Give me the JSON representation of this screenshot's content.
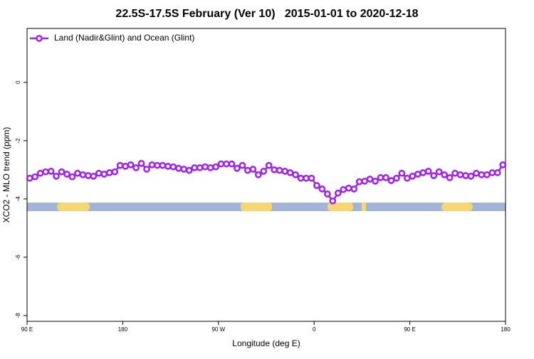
{
  "chart_data": {
    "type": "line",
    "title": "22.5S-17.5S February (Ver 10)   2015-01-01 to 2020-12-18",
    "x_label": "Longitude (deg E)",
    "y_label": "XCO2 - MLO trend (ppm)",
    "xlim": [
      90,
      540
    ],
    "ylim": [
      -8.2,
      1.85
    ],
    "xticks": [
      {
        "value": 90,
        "label": "90 E"
      },
      {
        "value": 180,
        "label": "180"
      },
      {
        "value": 270,
        "label": "90 W"
      },
      {
        "value": 360,
        "label": "0"
      },
      {
        "value": 450,
        "label": "90 E"
      },
      {
        "value": 540,
        "label": "180"
      }
    ],
    "yticks": [
      0,
      -2,
      -4,
      -6,
      -8
    ],
    "legend": "top-left",
    "x": [
      92.5,
      97.5,
      102.5,
      107.5,
      112.5,
      117.5,
      122.5,
      127.5,
      132.5,
      137.5,
      142.5,
      147.5,
      152.5,
      157.5,
      162.5,
      167.5,
      172.5,
      177.5,
      182.5,
      187.5,
      192.5,
      197.5,
      202.5,
      207.5,
      212.5,
      217.5,
      222.5,
      227.5,
      232.5,
      237.5,
      242.5,
      247.5,
      252.5,
      257.5,
      262.5,
      267.5,
      272.5,
      277.5,
      282.5,
      287.5,
      292.5,
      297.5,
      302.5,
      307.5,
      312.5,
      317.5,
      322.5,
      327.5,
      332.5,
      337.5,
      342.5,
      347.5,
      352.5,
      357.5,
      362.5,
      367.5,
      372.5,
      377.5,
      382.5,
      387.5,
      392.5,
      397.5,
      402.5,
      407.5,
      412.5,
      417.5,
      422.5,
      427.5,
      432.5,
      437.5,
      442.5,
      447.5,
      452.5,
      457.5,
      462.5,
      467.5,
      472.5,
      477.5,
      482.5,
      487.5,
      492.5,
      497.5,
      502.5,
      507.5,
      512.5,
      517.5,
      522.5,
      527.5,
      532.5,
      537.5
    ],
    "series": [
      {
        "name": "Land (Nadir&Glint) and Ocean (Glint)",
        "color": "#a020f0",
        "values": [
          -3.29,
          -3.24,
          -3.12,
          -3.07,
          -3.05,
          -3.22,
          -3.07,
          -3.15,
          -3.24,
          -3.12,
          -3.17,
          -3.2,
          -3.22,
          -3.12,
          -3.15,
          -3.1,
          -3.07,
          -2.85,
          -2.88,
          -2.83,
          -2.93,
          -2.78,
          -2.98,
          -2.83,
          -2.85,
          -2.85,
          -2.88,
          -2.9,
          -2.95,
          -2.98,
          -3.02,
          -2.93,
          -2.93,
          -2.9,
          -2.93,
          -2.9,
          -2.8,
          -2.8,
          -2.8,
          -2.95,
          -2.85,
          -3.02,
          -2.98,
          -3.17,
          -3.05,
          -2.85,
          -3.0,
          -3.02,
          -3.05,
          -3.1,
          -3.17,
          -3.29,
          -3.29,
          -3.29,
          -3.54,
          -3.66,
          -3.83,
          -4.07,
          -3.8,
          -3.68,
          -3.63,
          -3.66,
          -3.41,
          -3.39,
          -3.32,
          -3.39,
          -3.27,
          -3.27,
          -3.37,
          -3.29,
          -3.12,
          -3.29,
          -3.22,
          -3.15,
          -3.1,
          -3.05,
          -3.2,
          -3.07,
          -3.17,
          -3.27,
          -3.12,
          -3.17,
          -3.2,
          -3.22,
          -3.12,
          -3.17,
          -3.17,
          -3.1,
          -3.1,
          -2.83
        ]
      }
    ]
  }
}
